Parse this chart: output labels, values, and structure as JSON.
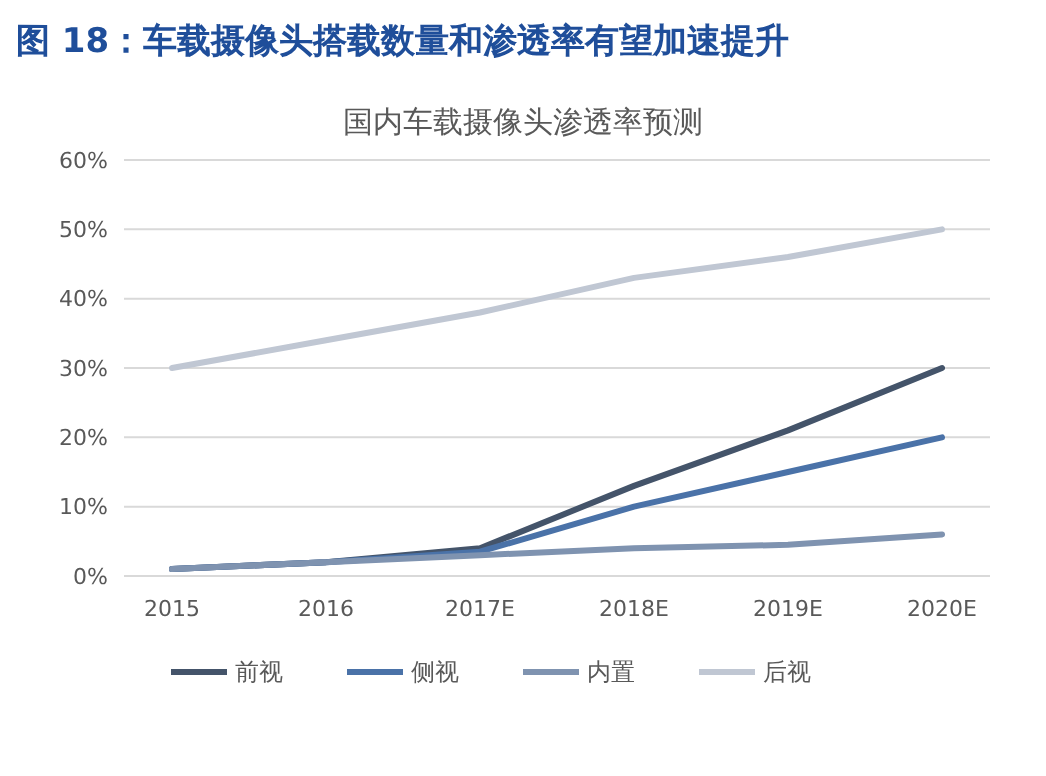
{
  "chart_data": {
    "type": "line",
    "title": "图 18：车载摄像头搭载数量和渗透率有望加速提升",
    "subtitle": "国内车载摄像头渗透率预测",
    "categories": [
      "2015",
      "2016",
      "2017E",
      "2018E",
      "2019E",
      "2020E"
    ],
    "series": [
      {
        "name": "前视",
        "color": "#44546a",
        "values": [
          1,
          2,
          4,
          13,
          21,
          30
        ]
      },
      {
        "name": "侧视",
        "color": "#4a72a8",
        "values": [
          1,
          2,
          3.5,
          10,
          15,
          20
        ]
      },
      {
        "name": "内置",
        "color": "#7f93b0",
        "values": [
          1,
          2,
          3,
          4,
          4.5,
          6
        ]
      },
      {
        "name": "后视",
        "color": "#c0c7d3",
        "values": [
          30,
          34,
          38,
          43,
          46,
          50
        ]
      }
    ],
    "ylim": [
      0,
      60
    ],
    "yticks": [
      {
        "value": 0,
        "label": "0%"
      },
      {
        "value": 10,
        "label": "10%"
      },
      {
        "value": 20,
        "label": "20%"
      },
      {
        "value": 30,
        "label": "30%"
      },
      {
        "value": 40,
        "label": "40%"
      },
      {
        "value": 50,
        "label": "50%"
      },
      {
        "value": 60,
        "label": "60%"
      }
    ],
    "grid": "y",
    "legend": "bottom",
    "marker": "none",
    "line_style": "solid"
  }
}
